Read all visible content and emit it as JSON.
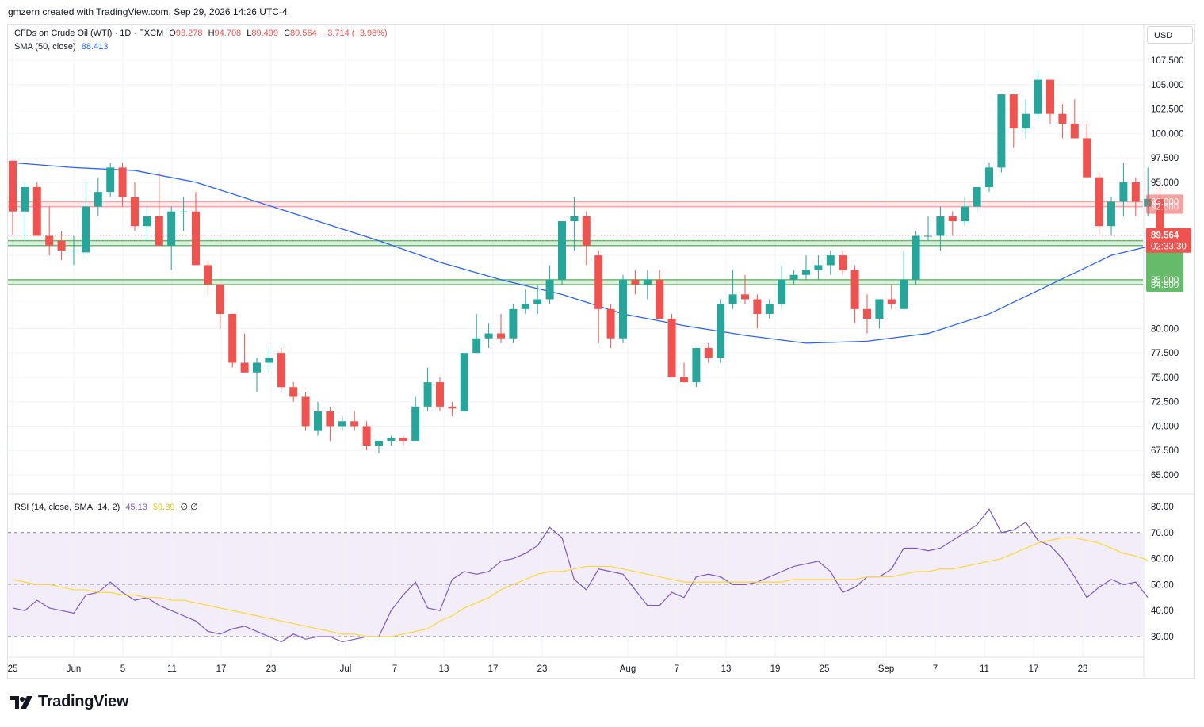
{
  "header": {
    "caption": "gmzern created with TradingView.com, Sep 29, 2026 14:26 UTC-4"
  },
  "symbol_legend": {
    "title": "CFDs on Crude Oil (WTI) · 1D · FXCM",
    "open_label": "O",
    "open": "93.278",
    "high_label": "H",
    "high": "94.708",
    "low_label": "L",
    "low": "89.499",
    "close_label": "C",
    "close": "89.564",
    "change": "−3.714 (−3.98%)"
  },
  "sma_legend": {
    "label": "SMA (50, close)",
    "value": "88.413"
  },
  "rsi_legend": {
    "label": "RSI (14, close, SMA, 14, 2)",
    "rsi_value": "45.13",
    "sma_value": "59.39",
    "extra": "∅ ∅"
  },
  "currency_button": "USD",
  "footer": {
    "brand": "TradingView"
  },
  "colors": {
    "up": "#26a69a",
    "down": "#ef5350",
    "sma": "#2962ff",
    "rsi": "#7e57c2",
    "rsi_sma": "#fdd835",
    "zone_red": "#f7a5a5",
    "zone_green": "#66bb6a",
    "rsi_band": "#ede7f6"
  },
  "chart_data": [
    {
      "type": "candlestick",
      "title": "CFDs on Crude Oil (WTI) · 1D · FXCM",
      "ylim": [
        63,
        110
      ],
      "y_ticks": [
        "65.000",
        "67.500",
        "70.000",
        "72.500",
        "75.000",
        "77.500",
        "80.000",
        "82.500",
        "85.000",
        "87.500",
        "90.000",
        "92.500",
        "95.000",
        "97.500",
        "100.000",
        "102.500",
        "105.000",
        "107.500"
      ],
      "x_tick_labels": [
        "25",
        "Jun",
        "5",
        "11",
        "17",
        "23",
        "Jul",
        "7",
        "13",
        "17",
        "23",
        "Aug",
        "7",
        "13",
        "19",
        "25",
        "Sep",
        "7",
        "11",
        "17",
        "23"
      ],
      "candles_ohlc": [
        [
          97.2,
          97.2,
          89.6,
          92.0
        ],
        [
          92.0,
          95.0,
          89.0,
          94.5
        ],
        [
          94.5,
          95.0,
          89.5,
          89.5
        ],
        [
          89.5,
          92.5,
          87.5,
          88.5
        ],
        [
          89.0,
          90.0,
          87.0,
          88.0
        ],
        [
          88.0,
          89.5,
          86.5,
          88.0
        ],
        [
          87.8,
          95.0,
          87.5,
          92.5
        ],
        [
          92.5,
          95.5,
          91.5,
          94.0
        ],
        [
          94.0,
          97.0,
          93.5,
          96.5
        ],
        [
          96.5,
          97.0,
          92.5,
          93.5
        ],
        [
          93.5,
          95.0,
          90.0,
          90.5
        ],
        [
          90.5,
          92.5,
          89.0,
          91.5
        ],
        [
          91.5,
          96.0,
          90.5,
          88.5
        ],
        [
          88.5,
          92.5,
          86.0,
          92.0
        ],
        [
          92.0,
          93.5,
          90.0,
          92.0
        ],
        [
          92.0,
          94.0,
          86.5,
          86.5
        ],
        [
          86.5,
          87.0,
          83.5,
          84.5
        ],
        [
          84.5,
          84.5,
          80.0,
          81.5
        ],
        [
          81.5,
          81.5,
          76.0,
          76.5
        ],
        [
          76.5,
          79.5,
          75.5,
          75.5
        ],
        [
          75.5,
          77.0,
          73.5,
          76.5
        ],
        [
          76.5,
          78.0,
          75.5,
          77.0
        ],
        [
          77.5,
          78.0,
          73.5,
          74.0
        ],
        [
          74.0,
          74.5,
          72.5,
          73.0
        ],
        [
          73.0,
          73.5,
          69.5,
          70.0
        ],
        [
          69.5,
          72.5,
          69.0,
          71.5
        ],
        [
          71.5,
          72.0,
          68.5,
          70.0
        ],
        [
          70.0,
          71.0,
          69.5,
          70.5
        ],
        [
          70.5,
          71.5,
          69.5,
          70.0
        ],
        [
          70.0,
          70.5,
          67.5,
          68.0
        ],
        [
          68.0,
          68.5,
          67.2,
          68.5
        ],
        [
          68.5,
          69.0,
          68.0,
          68.8
        ],
        [
          68.8,
          69.0,
          68.0,
          68.5
        ],
        [
          68.5,
          73.0,
          68.5,
          72.0
        ],
        [
          72.0,
          76.0,
          71.5,
          74.5
        ],
        [
          74.5,
          75.0,
          71.5,
          72.0
        ],
        [
          72.0,
          72.5,
          71.0,
          71.8
        ],
        [
          71.5,
          77.5,
          71.5,
          77.5
        ],
        [
          77.5,
          81.5,
          77.5,
          79.0
        ],
        [
          79.0,
          80.5,
          78.0,
          79.5
        ],
        [
          79.5,
          81.5,
          78.5,
          79.0
        ],
        [
          79.0,
          82.5,
          78.5,
          82.0
        ],
        [
          82.0,
          84.0,
          81.5,
          82.5
        ],
        [
          82.5,
          84.5,
          81.5,
          83.0
        ],
        [
          83.0,
          86.5,
          82.5,
          85.0
        ],
        [
          85.0,
          88.0,
          84.5,
          91.0
        ],
        [
          91.0,
          93.5,
          88.0,
          91.5
        ],
        [
          91.5,
          92.0,
          86.5,
          88.5
        ],
        [
          87.5,
          88.0,
          78.5,
          82.0
        ],
        [
          82.0,
          82.5,
          78.0,
          79.0
        ],
        [
          79.0,
          85.5,
          78.5,
          85.0
        ],
        [
          85.0,
          86.0,
          83.5,
          84.5
        ],
        [
          84.5,
          86.0,
          83.0,
          85.0
        ],
        [
          85.0,
          86.0,
          81.5,
          81.0
        ],
        [
          81.0,
          81.5,
          77.5,
          75.0
        ],
        [
          75.0,
          76.5,
          74.5,
          74.5
        ],
        [
          74.5,
          78.0,
          74.0,
          78.0
        ],
        [
          78.0,
          78.5,
          76.5,
          77.0
        ],
        [
          77.0,
          83.0,
          76.5,
          82.5
        ],
        [
          82.5,
          86.0,
          82.0,
          83.5
        ],
        [
          83.5,
          85.5,
          82.5,
          83.0
        ],
        [
          83.0,
          83.5,
          80.0,
          81.5
        ],
        [
          81.5,
          83.0,
          81.0,
          82.5
        ],
        [
          82.5,
          86.5,
          82.0,
          85.0
        ],
        [
          85.0,
          86.0,
          84.5,
          85.5
        ],
        [
          85.5,
          87.5,
          85.0,
          86.0
        ],
        [
          86.0,
          87.5,
          85.0,
          86.5
        ],
        [
          86.5,
          88.0,
          85.5,
          87.5
        ],
        [
          87.5,
          88.0,
          85.5,
          86.0
        ],
        [
          86.0,
          86.5,
          80.5,
          82.0
        ],
        [
          82.0,
          83.5,
          79.5,
          81.0
        ],
        [
          81.0,
          83.0,
          80.0,
          83.0
        ],
        [
          83.0,
          84.5,
          82.0,
          82.5
        ],
        [
          82.0,
          88.0,
          82.0,
          85.0
        ],
        [
          85.0,
          90.0,
          84.5,
          89.5
        ],
        [
          89.5,
          91.5,
          89.0,
          89.5
        ],
        [
          89.5,
          92.5,
          88.0,
          91.5
        ],
        [
          91.5,
          92.0,
          89.5,
          91.0
        ],
        [
          91.0,
          93.5,
          90.5,
          92.5
        ],
        [
          92.5,
          94.5,
          92.0,
          94.5
        ],
        [
          94.5,
          97.0,
          94.0,
          96.5
        ],
        [
          96.5,
          104.0,
          96.0,
          104.0
        ],
        [
          104.0,
          104.0,
          98.5,
          100.5
        ],
        [
          100.5,
          103.5,
          99.5,
          102.0
        ],
        [
          102.0,
          106.5,
          101.5,
          105.5
        ],
        [
          105.5,
          105.5,
          101.0,
          102.0
        ],
        [
          102.0,
          103.0,
          99.5,
          101.0
        ],
        [
          101.0,
          103.5,
          99.5,
          99.5
        ],
        [
          99.5,
          101.0,
          97.0,
          95.5
        ],
        [
          95.5,
          96.0,
          89.5,
          90.5
        ],
        [
          90.5,
          93.5,
          89.5,
          93.0
        ],
        [
          93.0,
          97.0,
          91.5,
          95.0
        ],
        [
          95.0,
          95.5,
          91.5,
          93.0
        ],
        [
          92.5,
          96.5,
          91.5,
          93.3
        ],
        [
          93.278,
          94.708,
          89.499,
          89.564
        ]
      ],
      "series": [
        {
          "name": "SMA (50, close)",
          "x_idx": [
            0,
            5,
            10,
            15,
            20,
            25,
            30,
            35,
            40,
            45,
            50,
            55,
            60,
            65,
            70,
            75,
            80,
            85,
            90,
            93
          ],
          "values": [
            97.0,
            96.5,
            96.2,
            95.0,
            93.0,
            91.0,
            89.0,
            86.8,
            85.0,
            83.5,
            81.5,
            80.3,
            79.3,
            78.5,
            78.7,
            79.5,
            81.5,
            84.5,
            87.5,
            88.4
          ]
        }
      ],
      "price_lines": [
        "93.000",
        "92.500",
        "89.000",
        "88.500",
        "85.000",
        "84.500"
      ],
      "last_price": "89.564",
      "countdown": "02:33:30"
    },
    {
      "type": "line",
      "title": "RSI (14, close, SMA, 14, 2)",
      "ylim": [
        27,
        82
      ],
      "y_ticks": [
        "30.00",
        "40.00",
        "50.00",
        "60.00",
        "70.00",
        "80.00"
      ],
      "band": [
        30,
        70
      ],
      "midline": 50,
      "series": [
        {
          "name": "RSI",
          "values": [
            41,
            40,
            44,
            41,
            40,
            39,
            46,
            47,
            51,
            47,
            44,
            45,
            42,
            40,
            38,
            36,
            32,
            31,
            33,
            34,
            32,
            30,
            28,
            31,
            29,
            30,
            30,
            28,
            29,
            30,
            30,
            40,
            46,
            51,
            41,
            40,
            52,
            55,
            54,
            55,
            59,
            60,
            62,
            65,
            72,
            68,
            52,
            48,
            56,
            55,
            54,
            48,
            42,
            42,
            47,
            45,
            53,
            54,
            53,
            50,
            50,
            51,
            53,
            55,
            57,
            58,
            59,
            55,
            47,
            49,
            53,
            53,
            56,
            64,
            64,
            63,
            64,
            67,
            70,
            73,
            79,
            70,
            71,
            74,
            67,
            65,
            60,
            53,
            45,
            49,
            52,
            50,
            51,
            45
          ]
        },
        {
          "name": "RSI SMA",
          "values": [
            52,
            51,
            50,
            50,
            49,
            48,
            48,
            47,
            47,
            46,
            46,
            45,
            45,
            44,
            44,
            43,
            42,
            41,
            40,
            39,
            38,
            37,
            36,
            35,
            34,
            33,
            32,
            31,
            31,
            30,
            30,
            30,
            31,
            32,
            33,
            36,
            38,
            41,
            43,
            45,
            48,
            50,
            52,
            54,
            55,
            55,
            56,
            57,
            57,
            57,
            56,
            55,
            54,
            53,
            52,
            51,
            51,
            51,
            51,
            51,
            51,
            51,
            51,
            51,
            52,
            52,
            52,
            52,
            52,
            52,
            53,
            53,
            53,
            54,
            55,
            55,
            56,
            56,
            57,
            58,
            59,
            60,
            62,
            64,
            66,
            67,
            68,
            68,
            67,
            66,
            64,
            62,
            61,
            59.39
          ]
        }
      ]
    }
  ]
}
